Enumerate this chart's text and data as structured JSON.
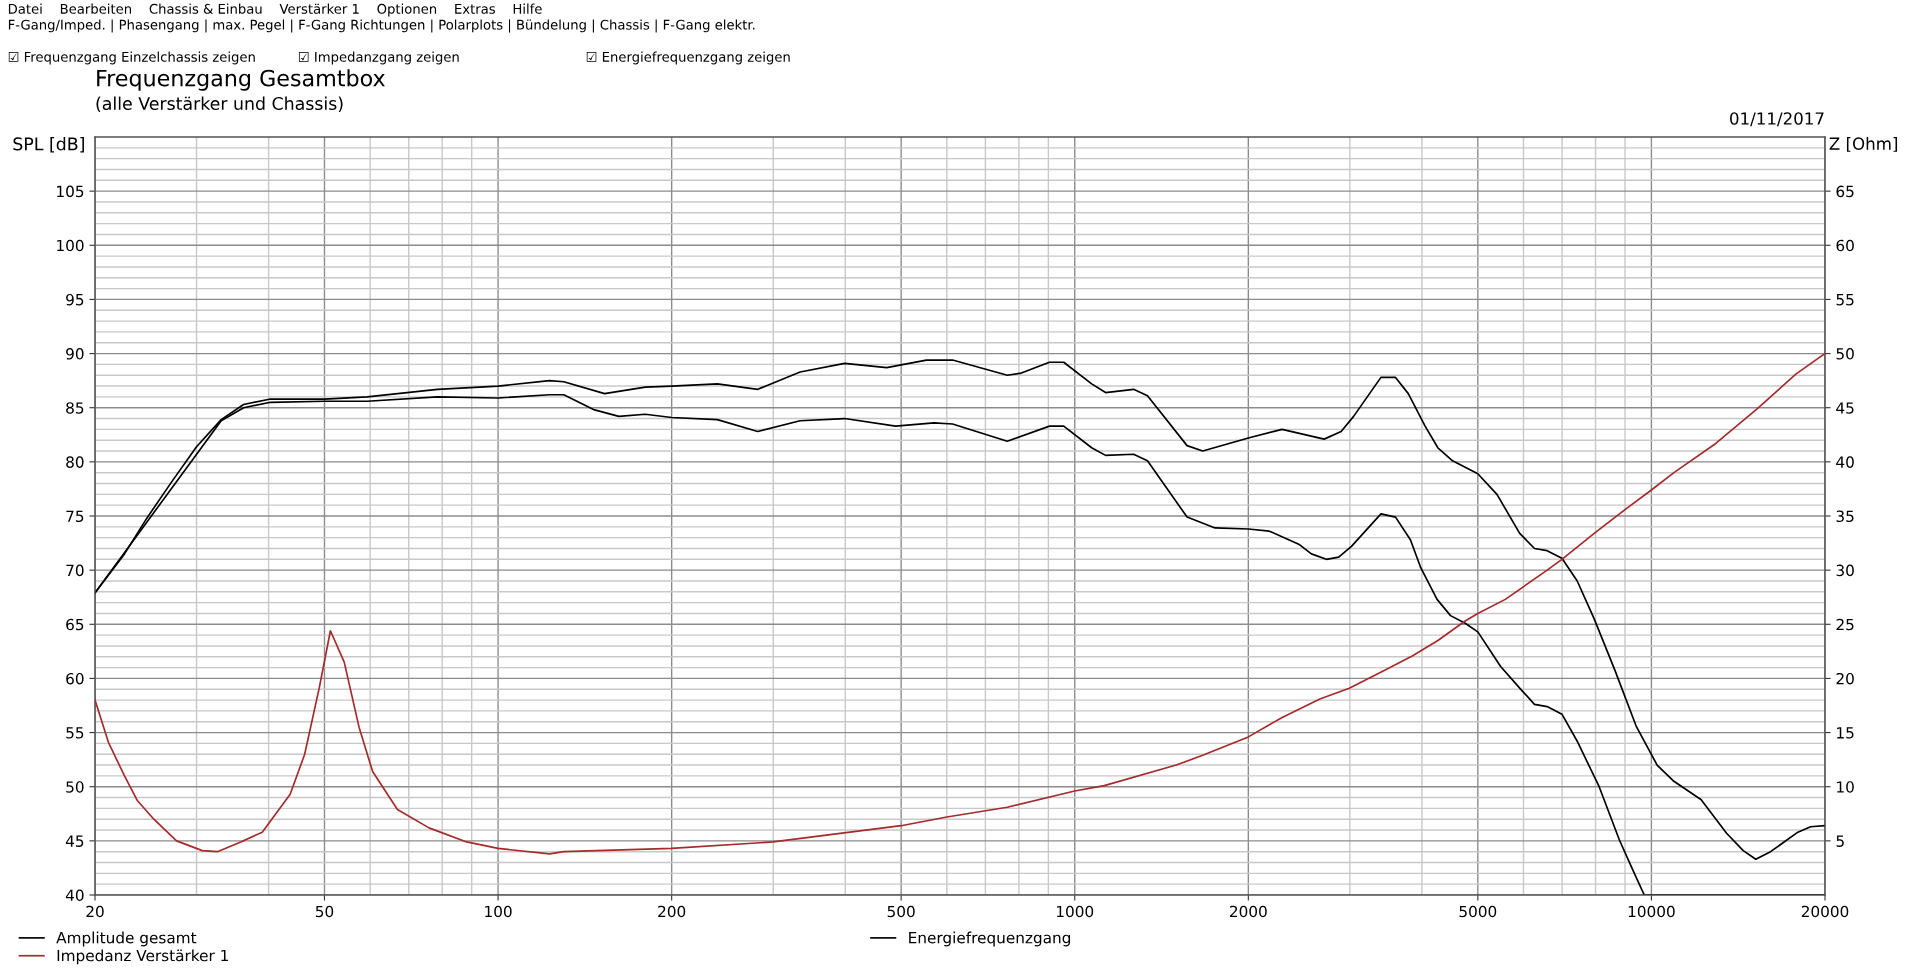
{
  "chart_data": {
    "type": "line",
    "title": "Frequenzgang Gesamtbox",
    "subtitle": "(alle Verstärker und Chassis)",
    "ylabel": "SPL [dB]",
    "y2label": "Z [Ohm]",
    "annotations": [
      "Datei    Bearbeiten    Chassis & Einbau    Verstärker 1    Optionen    Extras    Hilfe",
      "F-Gang/Imped. | Phasengang | max. Pegel | F-Gang Richtungen | Polarplots | Bündelung | Chassis | F-Gang elektr.",
      "☑ Frequenzgang Einzelchassis zeigen          ☑ Impedanzgang zeigen                              ☑ Energiefrequenzgang zeigen",
      "01/11/2017"
    ],
    "log": "x",
    "xlim": [
      20,
      20000
    ],
    "xticks": [
      20,
      50,
      100,
      200,
      500,
      1000,
      2000,
      5000,
      10000,
      20000
    ],
    "ylim": [
      40,
      110
    ],
    "yticks": [
      40,
      45,
      50,
      55,
      60,
      65,
      70,
      75,
      80,
      85,
      90,
      95,
      100,
      105
    ],
    "y2lim": [
      0,
      70
    ],
    "y2ticks": [
      5,
      10,
      15,
      20,
      25,
      30,
      35,
      40,
      45,
      50,
      55,
      60,
      65
    ],
    "grid": true,
    "legend": "bottom",
    "line_style": "solid",
    "marker": "none",
    "series": [
      {
        "name": "Amplitude gesamt",
        "color": "#000000",
        "x": [
          20,
          22.5,
          24.6,
          27.2,
          30,
          33.1,
          36.2,
          40.3,
          50,
          59.3,
          78.5,
          100,
          122.8,
          130,
          153,
          180,
          200,
          240,
          282,
          334,
          399,
          472,
          553,
          614,
          764,
          808,
          904,
          957,
          1070,
          1131,
          1265,
          1337,
          1566,
          1667,
          2000,
          2289,
          2707,
          2897,
          3045,
          3396,
          3600,
          3788,
          4051,
          4263,
          4521,
          5000,
          5397,
          5910,
          6270,
          6595,
          6996,
          7436,
          7958,
          8652,
          9409,
          10230,
          10940,
          12200,
          13500,
          14430,
          15170,
          16090,
          17950,
          18880,
          20000
        ],
        "values": [
          67.9,
          71.5,
          74.8,
          78.2,
          81.4,
          83.9,
          85.3,
          85.8,
          85.8,
          86.0,
          86.7,
          87.0,
          87.5,
          87.4,
          86.3,
          86.9,
          87.0,
          87.2,
          86.7,
          88.3,
          89.1,
          88.7,
          89.4,
          89.4,
          88.0,
          88.2,
          89.2,
          89.2,
          87.2,
          86.4,
          86.7,
          86.1,
          81.5,
          81.0,
          82.2,
          83.0,
          82.1,
          82.8,
          84.2,
          87.8,
          87.8,
          86.3,
          83.3,
          81.3,
          80.1,
          78.9,
          77.0,
          73.4,
          72.0,
          71.8,
          71.1,
          69.0,
          65.5,
          60.7,
          55.6,
          52.0,
          50.5,
          48.8,
          45.7,
          44.1,
          43.3,
          44.0,
          45.8,
          46.3,
          46.4
        ]
      },
      {
        "name": "Impedanz Verstärker 1",
        "color": "#a52a2a",
        "axis": "y2",
        "x": [
          20,
          21.1,
          22.5,
          23.7,
          25.3,
          27.7,
          30.7,
          32.6,
          35.8,
          39.0,
          43.6,
          46.2,
          49.0,
          51.2,
          54.1,
          57.4,
          60.6,
          66.9,
          75.9,
          88.2,
          100,
          122.8,
          130,
          200,
          300,
          500,
          600,
          764,
          1000,
          1125,
          1500,
          1667,
          2000,
          2289,
          2661,
          2993,
          3434,
          3855,
          4263,
          4754,
          5000,
          5580,
          6595,
          6996,
          7958,
          9108,
          10000,
          10940,
          12930,
          15250,
          17800,
          20000
        ],
        "values": [
          18.0,
          14.1,
          11.0,
          8.7,
          7.0,
          5.0,
          4.1,
          4.0,
          4.9,
          5.8,
          9.3,
          13.0,
          19.2,
          24.4,
          21.5,
          15.5,
          11.4,
          7.9,
          6.2,
          4.9,
          4.3,
          3.8,
          4.0,
          4.3,
          4.9,
          6.4,
          7.2,
          8.1,
          9.6,
          10.1,
          12.0,
          12.9,
          14.6,
          16.4,
          18.1,
          19.1,
          20.7,
          22.1,
          23.5,
          25.3,
          26.0,
          27.3,
          30.0,
          31.0,
          33.4,
          35.8,
          37.4,
          39.0,
          41.7,
          44.9,
          48.1,
          50.0
        ]
      },
      {
        "name": "Energiefrequenzgang",
        "color": "#000000",
        "x": [
          20,
          33.1,
          36.2,
          40.3,
          50,
          59.3,
          78.5,
          100,
          122.8,
          130,
          147,
          162,
          180,
          200,
          240,
          282,
          334,
          399,
          489,
          570,
          614,
          764,
          904,
          957,
          1070,
          1131,
          1265,
          1337,
          1566,
          1751,
          2000,
          2175,
          2446,
          2573,
          2731,
          2869,
          3019,
          3396,
          3600,
          3820,
          3983,
          4249,
          4484,
          4754,
          5000,
          5477,
          5958,
          6270,
          6595,
          6996,
          7436,
          8117,
          8797,
          9249,
          9719,
          20000
        ],
        "values": [
          67.9,
          83.8,
          85.0,
          85.5,
          85.6,
          85.6,
          86.0,
          85.9,
          86.2,
          86.2,
          84.8,
          84.2,
          84.4,
          84.1,
          83.9,
          82.8,
          83.8,
          84.0,
          83.3,
          83.6,
          83.5,
          81.9,
          83.3,
          83.3,
          81.3,
          80.6,
          80.7,
          80.1,
          74.9,
          73.9,
          73.8,
          73.6,
          72.4,
          71.5,
          71.0,
          71.2,
          72.2,
          75.2,
          74.9,
          72.8,
          70.2,
          67.3,
          65.8,
          65.1,
          64.3,
          61.1,
          58.9,
          57.6,
          57.4,
          56.7,
          54.2,
          50.0,
          45.1,
          42.5,
          40.0,
          40.0
        ]
      }
    ]
  }
}
